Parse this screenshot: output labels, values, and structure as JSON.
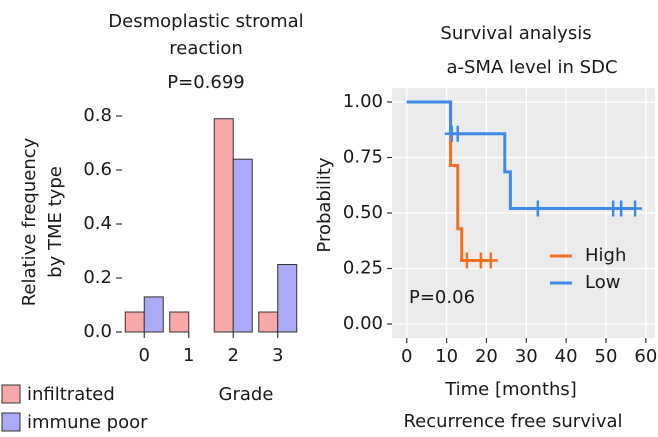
{
  "chart_data": [
    {
      "type": "bar",
      "title_lines": [
        "Desmoplastic stromal",
        "reaction"
      ],
      "subtitle": "P=0.699",
      "ylabel_lines": [
        "Relative frequency",
        "by TME type"
      ],
      "xlabel": "Grade",
      "categories": [
        "0",
        "1",
        "2",
        "3"
      ],
      "series": [
        {
          "name": "infiltrated",
          "color": "#f7a8a8",
          "values": [
            0.074,
            0.074,
            0.79,
            0.074
          ]
        },
        {
          "name": "immune poor",
          "color": "#aaaaf7",
          "values": [
            0.13,
            0,
            0.64,
            0.25
          ]
        }
      ],
      "ylim": [
        0,
        0.82
      ],
      "yticks": [
        {
          "value": 0,
          "label": "0.0"
        },
        {
          "value": 0.2,
          "label": "0.2"
        },
        {
          "value": 0.4,
          "label": "0.4"
        },
        {
          "value": 0.6,
          "label": "0.6"
        },
        {
          "value": 0.8,
          "label": "0.8"
        }
      ],
      "legend": "bottom-left"
    },
    {
      "type": "step",
      "title": "Survival analysis",
      "subtitle": "a-SMA level in SDC",
      "ylabel": "Probability",
      "xlabel": "Time [months]",
      "caption": "Recurrence free survival",
      "annotation": "P=0.06",
      "series": [
        {
          "name": "High",
          "color": "#f37021",
          "x": [
            0,
            11,
            11,
            12.8,
            12.8,
            13.8,
            13.8,
            21.3
          ],
          "values": [
            1,
            1,
            0.714,
            0.714,
            0.429,
            0.429,
            0.286,
            0.286
          ],
          "censor_x": [
            15.1,
            18.6,
            21.1
          ],
          "censor_values": [
            0.286,
            0.286,
            0.286
          ]
        },
        {
          "name": "Low",
          "color": "#3d8ae8",
          "x": [
            0,
            11,
            11,
            24.6,
            24.6,
            26,
            26,
            57
          ],
          "values": [
            1,
            1,
            0.857,
            0.857,
            0.685,
            0.685,
            0.52,
            0.52
          ],
          "censor_x": [
            11.3,
            12.8,
            32.9,
            51.8,
            53.8,
            57.3
          ],
          "censor_values": [
            0.857,
            0.857,
            0.52,
            0.52,
            0.52,
            0.52
          ]
        }
      ],
      "xlim": [
        -3.7,
        62.3
      ],
      "ylim": [
        -0.063,
        1.063
      ],
      "xticks": [
        0,
        10,
        20,
        30,
        40,
        50,
        60
      ],
      "yticks": [
        {
          "value": 0,
          "label": "0.00"
        },
        {
          "value": 0.25,
          "label": "0.25"
        },
        {
          "value": 0.5,
          "label": "0.50"
        },
        {
          "value": 0.75,
          "label": "0.75"
        },
        {
          "value": 1,
          "label": "1.00"
        }
      ],
      "grid": true,
      "legend": "lower right"
    }
  ]
}
